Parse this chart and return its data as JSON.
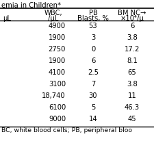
{
  "title": "emia in Children*",
  "col1_header": [
    "WBC,",
    "/μL"
  ],
  "col2_header": [
    "PB",
    "Blasts, %"
  ],
  "col3_header": [
    "BM NC→",
    "×10⁴/μ"
  ],
  "left_header": "μL",
  "rows": [
    [
      "4900",
      "53",
      "6"
    ],
    [
      "1900",
      "3",
      "3.8"
    ],
    [
      "2750",
      "0",
      "17.2"
    ],
    [
      "1900",
      "6",
      "8.1"
    ],
    [
      "4100",
      "2.5",
      "65"
    ],
    [
      "3100",
      "7",
      "3.8"
    ],
    [
      "18,740",
      "30",
      "11"
    ],
    [
      "6100",
      "5",
      "46.3"
    ],
    [
      "9000",
      "14",
      "45"
    ]
  ],
  "footer": "BC, white blood cells; PB, peripheral bloo",
  "bg_color": "#ffffff",
  "text_color": "#000000",
  "font_size": 7.2,
  "header_font_size": 7.2
}
